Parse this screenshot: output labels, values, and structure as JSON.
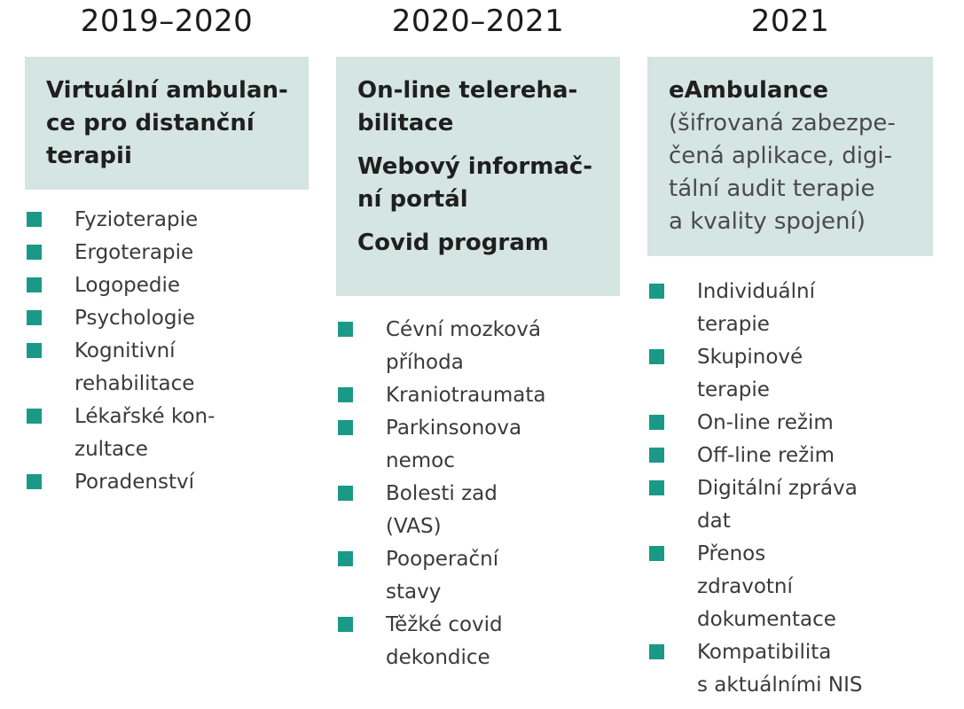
{
  "columns": [
    {
      "year": "2019–2020",
      "box_lines": [
        {
          "text": "Virtuální ambulan-",
          "style": "bold"
        },
        {
          "text": "ce pro distanční",
          "style": "bold"
        },
        {
          "text": "terapii",
          "style": "bold"
        }
      ],
      "items": [
        [
          "Fyzioterapie"
        ],
        [
          "Ergoterapie"
        ],
        [
          "Logopedie"
        ],
        [
          "Psychologie"
        ],
        [
          "Kognitivní",
          "rehabilitace"
        ],
        [
          "Lékařské kon-",
          "zultace"
        ],
        [
          "Poradenství"
        ]
      ]
    },
    {
      "year": "2020–2021",
      "box_lines": [
        {
          "text": "On-line telereha-",
          "style": "bold"
        },
        {
          "text": "bilitace",
          "style": "bold"
        },
        {
          "text": "",
          "style": "gap"
        },
        {
          "text": "Webový informač-",
          "style": "bold"
        },
        {
          "text": "ní portál",
          "style": "bold"
        },
        {
          "text": "",
          "style": "gap"
        },
        {
          "text": "Covid program",
          "style": "bold"
        }
      ],
      "items": [
        [
          "Cévní mozková",
          "příhoda"
        ],
        [
          "Kraniotraumata"
        ],
        [
          "Parkinsonova",
          "nemoc"
        ],
        [
          "Bolesti zad",
          "(VAS)"
        ],
        [
          "Pooperační",
          "stavy"
        ],
        [
          "Těžké covid",
          "dekondice"
        ]
      ]
    },
    {
      "year": "2021",
      "box_lines": [
        {
          "text": "eAmbulance",
          "style": "bold"
        },
        {
          "text": "(šifrovaná zabezpe-",
          "style": "light"
        },
        {
          "text": "čená aplikace, digi-",
          "style": "light"
        },
        {
          "text": "tální audit terapie",
          "style": "light"
        },
        {
          "text": "a kvality spojení)",
          "style": "light"
        }
      ],
      "items": [
        [
          "Individuální",
          "terapie"
        ],
        [
          "Skupinové",
          "terapie"
        ],
        [
          "On-line režim"
        ],
        [
          "Off-line režim"
        ],
        [
          "Digitální zpráva",
          "dat"
        ],
        [
          "Přenos",
          "zdravotní",
          "dokumentace"
        ],
        [
          "Kompatibilita",
          "s aktuálními NIS"
        ]
      ]
    }
  ],
  "colors": {
    "box_fill": "#d5e5e1",
    "bullet": "#1a9a86"
  }
}
